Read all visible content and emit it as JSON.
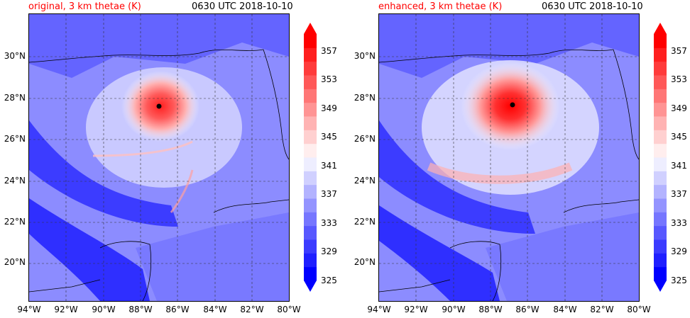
{
  "panels": [
    {
      "title": "original, 3 km thetae (K)",
      "time": "0630 UTC 2018-10-10",
      "title_color": "#ff0000"
    },
    {
      "title": "enhanced, 3 km thetae (K)",
      "time": "0630 UTC 2018-10-10",
      "title_color": "#ff0000"
    }
  ],
  "axes": {
    "lat_ticks": [
      "30°N",
      "28°N",
      "26°N",
      "24°N",
      "22°N",
      "20°N"
    ],
    "lon_ticks": [
      "94°W",
      "92°W",
      "90°W",
      "88°W",
      "86°W",
      "84°W",
      "82°W",
      "80°W"
    ]
  },
  "colorbar": {
    "ticks": [
      "357",
      "353",
      "349",
      "345",
      "341",
      "337",
      "333",
      "329",
      "325"
    ],
    "colors": [
      "#0000ff",
      "#1f1fff",
      "#3b3bff",
      "#5858ff",
      "#7676ff",
      "#9494ff",
      "#b3b3ff",
      "#d0d0ff",
      "#eeeeff",
      "#ffeeee",
      "#ffd0d0",
      "#ffb3b3",
      "#ff9494",
      "#ff7676",
      "#ff5858",
      "#ff3b3b",
      "#ff1f1f",
      "#ff0000"
    ]
  }
}
